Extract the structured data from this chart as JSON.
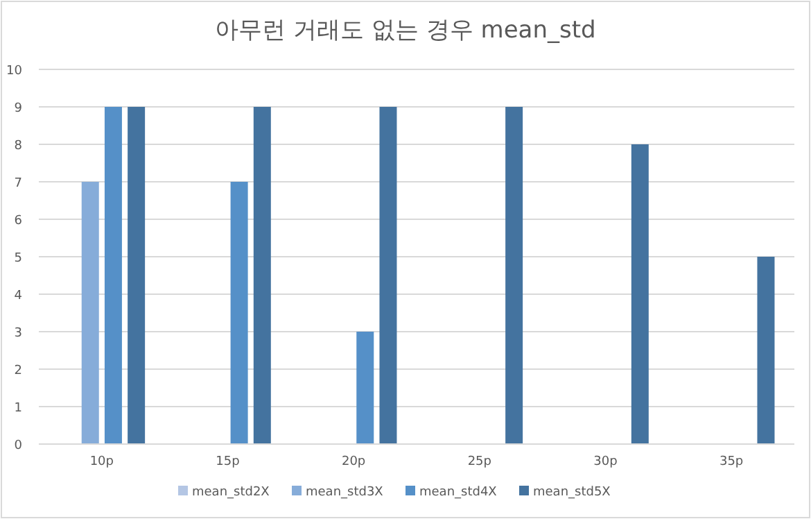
{
  "chart_data": {
    "type": "bar",
    "title": "아무런 거래도 없는 경우 mean_std",
    "categories": [
      "10p",
      "15p",
      "20p",
      "25p",
      "30p",
      "35p"
    ],
    "series": [
      {
        "name": "mean_std2X",
        "color": "#b4c6e4",
        "values": [
          null,
          null,
          null,
          null,
          null,
          null
        ]
      },
      {
        "name": "mean_std3X",
        "color": "#86acd9",
        "values": [
          7,
          null,
          null,
          null,
          null,
          null
        ]
      },
      {
        "name": "mean_std4X",
        "color": "#5590c8",
        "values": [
          9,
          7,
          3,
          null,
          null,
          null
        ]
      },
      {
        "name": "mean_std5X",
        "color": "#44739f",
        "values": [
          9,
          9,
          9,
          9,
          8,
          5
        ]
      }
    ],
    "ylim": [
      0,
      10
    ],
    "yticks": [
      0,
      1,
      2,
      3,
      4,
      5,
      6,
      7,
      8,
      9,
      10
    ],
    "grid": "y",
    "legend": "bottom"
  }
}
